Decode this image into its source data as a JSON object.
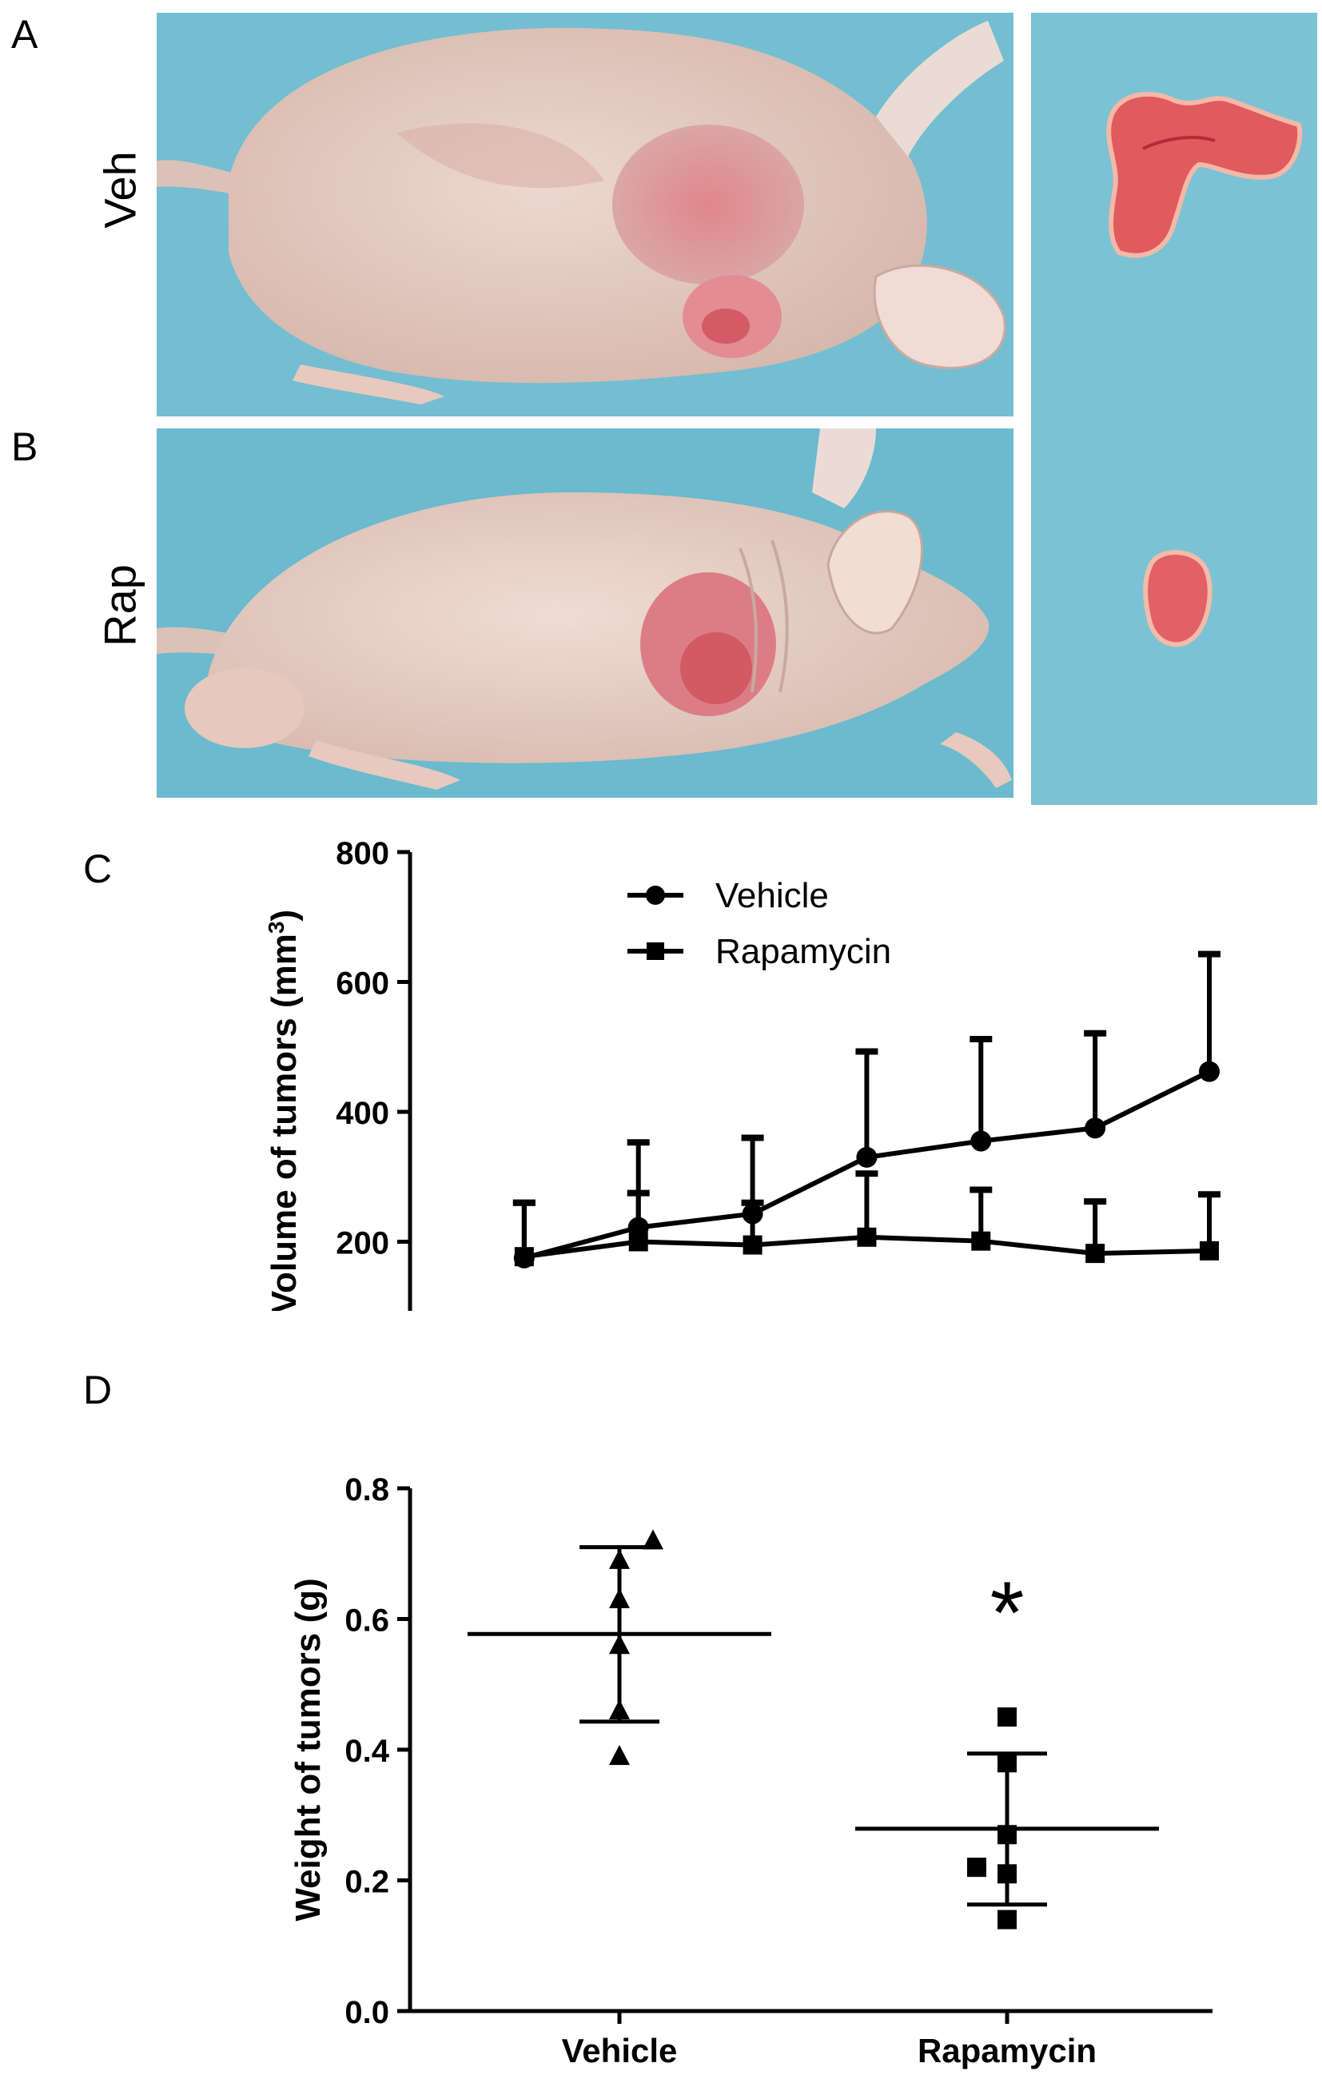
{
  "panels": {
    "a": "A",
    "b": "B",
    "c": "C",
    "d": "D"
  },
  "photo_labels": {
    "veh": "Veh",
    "rap": "Rap"
  },
  "colors": {
    "drape": "#5fb3c9",
    "drape_light": "#8fd0df",
    "skin": "#e8cfc6",
    "tumor": "#d9727a",
    "tumor_dark": "#c13a45",
    "ink": "#000000"
  },
  "chart_data": [
    {
      "type": "line",
      "panel": "C",
      "title": "",
      "xlabel": "",
      "ylabel": "Volume of tumors (mm³)",
      "ylabel_main": "Volume of tumors (mm",
      "ylabel_sup": "3",
      "ylabel_end": ")",
      "xlim": [
        14,
        28
      ],
      "ylim": [
        0,
        800
      ],
      "xticks": [
        14,
        16,
        18,
        20,
        22,
        24,
        26,
        28
      ],
      "yticks": [
        0,
        200,
        400,
        600,
        800
      ],
      "legend_position": "top-center",
      "grid": false,
      "series": [
        {
          "name": "Vehicle",
          "marker": "circle",
          "x": [
            16,
            18,
            20,
            22,
            24,
            26,
            28
          ],
          "y": [
            175,
            222,
            243,
            330,
            355,
            375,
            462
          ],
          "error_upper": [
            260,
            353,
            360,
            493,
            512,
            521,
            643
          ]
        },
        {
          "name": "Rapamycin",
          "marker": "square",
          "x": [
            16,
            18,
            20,
            22,
            24,
            26,
            28
          ],
          "y": [
            177,
            200,
            195,
            207,
            201,
            182,
            186
          ],
          "error_upper": [
            260,
            275,
            260,
            305,
            280,
            262,
            273
          ]
        }
      ]
    },
    {
      "type": "scatter",
      "panel": "D",
      "title": "",
      "xlabel": "",
      "ylabel": "Weight of tumors (g)",
      "categories": [
        "Vehicle",
        "Rapamycin"
      ],
      "ylim": [
        0.0,
        0.8
      ],
      "yticks": [
        "0.0",
        "0.2",
        "0.4",
        "0.6",
        "0.8"
      ],
      "grid": false,
      "annotation": "*",
      "groups": [
        {
          "category": "Vehicle",
          "marker": "triangle",
          "points": [
            0.72,
            0.69,
            0.63,
            0.56,
            0.46,
            0.39
          ],
          "mean": 0.577,
          "sd_low": 0.443,
          "sd_high": 0.71
        },
        {
          "category": "Rapamycin",
          "marker": "square",
          "points": [
            0.45,
            0.38,
            0.27,
            0.22,
            0.21,
            0.14
          ],
          "mean": 0.279,
          "sd_low": 0.163,
          "sd_high": 0.394
        }
      ]
    }
  ]
}
